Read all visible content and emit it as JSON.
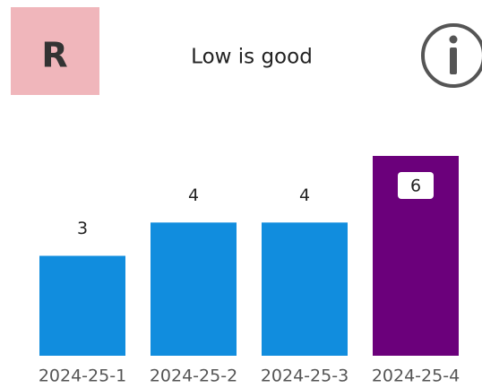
{
  "badge": "R",
  "header": "Low is good",
  "chart_data": {
    "type": "bar",
    "categories": [
      "2024-25-1",
      "2024-25-2",
      "2024-25-3",
      "2024-25-4"
    ],
    "values": [
      3,
      4,
      4,
      6
    ],
    "colors": [
      "#118DDE",
      "#118DDE",
      "#118DDE",
      "#6B007B"
    ]
  }
}
